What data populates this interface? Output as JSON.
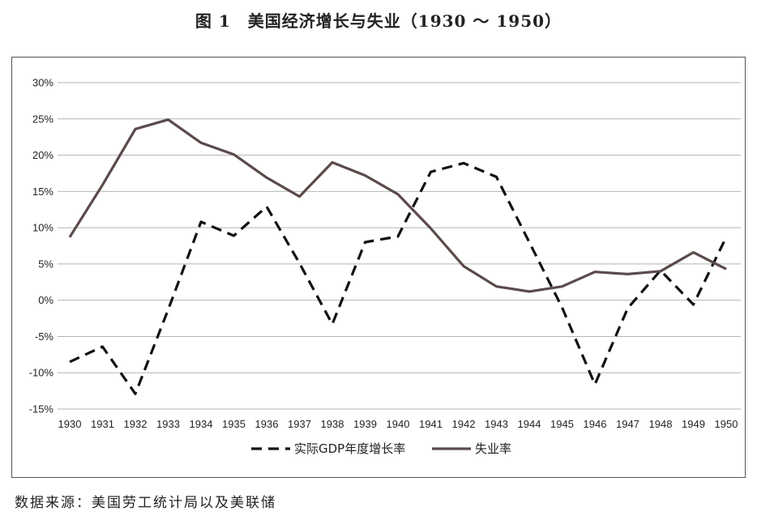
{
  "title": "图 1　美国经济增长与失业（1930 ～ 1950）",
  "source_note": "数据来源：美国劳工统计局以及美联储",
  "chart_data": {
    "type": "line",
    "x": [
      "1930",
      "1931",
      "1932",
      "1933",
      "1934",
      "1935",
      "1936",
      "1937",
      "1938",
      "1939",
      "1940",
      "1941",
      "1942",
      "1943",
      "1944",
      "1945",
      "1946",
      "1947",
      "1948",
      "1949",
      "1950"
    ],
    "y_ticks": [
      "30%",
      "25%",
      "20%",
      "15%",
      "10%",
      "5%",
      "0%",
      "-5%",
      "-10%",
      "-15%"
    ],
    "ylim": [
      -15,
      30
    ],
    "ytick_step": 5,
    "grid": true,
    "legend_position": "bottom",
    "series": [
      {
        "name": "实际GDP年度增长率",
        "style": "dashed",
        "color": "#111111",
        "values": [
          -8.5,
          -6.4,
          -12.9,
          -1.3,
          10.8,
          8.9,
          12.9,
          5.1,
          -3.3,
          8.0,
          8.8,
          17.7,
          18.9,
          17.0,
          8.0,
          -1.0,
          -11.6,
          -1.1,
          4.1,
          -0.6,
          8.7
        ]
      },
      {
        "name": "失业率",
        "style": "solid",
        "color": "#5b4a4a",
        "values": [
          8.7,
          15.9,
          23.6,
          24.9,
          21.7,
          20.1,
          16.9,
          14.3,
          19.0,
          17.2,
          14.6,
          9.9,
          4.7,
          1.9,
          1.2,
          1.9,
          3.9,
          3.6,
          4.0,
          6.6,
          4.3
        ]
      }
    ]
  }
}
